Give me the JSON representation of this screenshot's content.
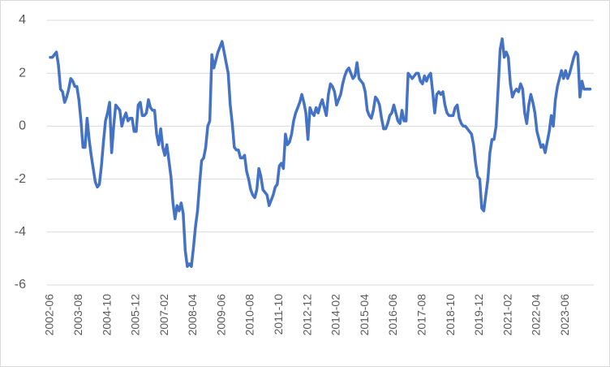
{
  "chart_data": {
    "type": "line",
    "color": "#4472c4",
    "grid": true,
    "ylim": [
      -6,
      4
    ],
    "yticks": [
      -6,
      -4,
      -2,
      0,
      2,
      4
    ],
    "categories": [
      "2002-06",
      null,
      null,
      null,
      null,
      null,
      null,
      null,
      null,
      null,
      null,
      null,
      null,
      null,
      "2003-08",
      null,
      null,
      null,
      null,
      null,
      null,
      null,
      null,
      null,
      null,
      null,
      null,
      null,
      "2004-10",
      null,
      null,
      null,
      null,
      null,
      null,
      null,
      null,
      null,
      null,
      null,
      null,
      null,
      "2005-12",
      null,
      null,
      null,
      null,
      null,
      null,
      null,
      null,
      null,
      null,
      null,
      null,
      null,
      "2007-02",
      null,
      null,
      null,
      null,
      null,
      null,
      null,
      null,
      null,
      null,
      null,
      null,
      null,
      "2008-04",
      null,
      null,
      null,
      null,
      null,
      null,
      null,
      null,
      null,
      null,
      null,
      null,
      null,
      "2009-06",
      null,
      null,
      null,
      null,
      null,
      null,
      null,
      null,
      null,
      null,
      null,
      null,
      null,
      "2010-08",
      null,
      null,
      null,
      null,
      null,
      null,
      null,
      null,
      null,
      null,
      null,
      null,
      null,
      "2011-10",
      null,
      null,
      null,
      null,
      null,
      null,
      null,
      null,
      null,
      null,
      null,
      null,
      null,
      "2012-12",
      null,
      null,
      null,
      null,
      null,
      null,
      null,
      null,
      null,
      null,
      null,
      null,
      null,
      "2014-02",
      null,
      null,
      null,
      null,
      null,
      null,
      null,
      null,
      null,
      null,
      null,
      null,
      null,
      "2015-04",
      null,
      null,
      null,
      null,
      null,
      null,
      null,
      null,
      null,
      null,
      null,
      null,
      null,
      "2016-06",
      null,
      null,
      null,
      null,
      null,
      null,
      null,
      null,
      null,
      null,
      null,
      null,
      null,
      "2017-08",
      null,
      null,
      null,
      null,
      null,
      null,
      null,
      null,
      null,
      null,
      null,
      null,
      null,
      "2018-10",
      null,
      null,
      null,
      null,
      null,
      null,
      null,
      null,
      null,
      null,
      null,
      null,
      null,
      "2019-12",
      null,
      null,
      null,
      null,
      null,
      null,
      null,
      null,
      null,
      null,
      null,
      null,
      null,
      "2021-02",
      null,
      null,
      null,
      null,
      null,
      null,
      null,
      null,
      null,
      null,
      null,
      null,
      null,
      "2022-04",
      null,
      null,
      null,
      null,
      null,
      null,
      null,
      null,
      null,
      null,
      null,
      null,
      null,
      "2023-06",
      null,
      null,
      null,
      null,
      null,
      null,
      null,
      null,
      null,
      null,
      null,
      null
    ],
    "values": [
      2.6,
      2.6,
      2.7,
      2.8,
      2.3,
      1.4,
      1.3,
      0.9,
      1.1,
      1.4,
      1.8,
      1.7,
      1.5,
      1.5,
      1.0,
      0.2,
      -0.8,
      -0.8,
      0.3,
      -0.5,
      -1.1,
      -1.6,
      -2.1,
      -2.3,
      -2.2,
      -1.5,
      -0.6,
      0.2,
      0.5,
      0.9,
      -1.0,
      0.0,
      0.8,
      0.7,
      0.6,
      0.0,
      0.3,
      0.5,
      0.2,
      0.3,
      0.3,
      -0.2,
      -0.2,
      0.8,
      0.9,
      0.4,
      0.4,
      0.5,
      1.0,
      0.7,
      0.6,
      0.6,
      -0.3,
      -0.7,
      -0.1,
      -0.8,
      -1.1,
      -0.7,
      -1.3,
      -1.9,
      -2.9,
      -3.5,
      -3.0,
      -3.2,
      -2.9,
      -3.3,
      -4.7,
      -5.3,
      -5.2,
      -5.3,
      -4.6,
      -3.8,
      -3.2,
      -2.2,
      -1.3,
      -1.2,
      -0.8,
      0.0,
      0.2,
      2.7,
      2.2,
      2.5,
      2.8,
      3.0,
      3.2,
      2.8,
      2.4,
      2.0,
      0.8,
      0.1,
      -0.8,
      -0.9,
      -0.9,
      -1.2,
      -1.2,
      -1.1,
      -1.7,
      -2.0,
      -2.4,
      -2.6,
      -2.7,
      -2.4,
      -1.6,
      -1.9,
      -2.4,
      -2.5,
      -2.6,
      -3.0,
      -2.8,
      -2.6,
      -2.3,
      -2.2,
      -1.5,
      -1.4,
      -1.6,
      -0.3,
      -0.7,
      -0.6,
      -0.3,
      0.2,
      0.5,
      0.7,
      0.9,
      1.2,
      0.9,
      0.5,
      -0.5,
      0.7,
      0.5,
      0.4,
      0.7,
      0.5,
      0.8,
      1.0,
      0.7,
      0.4,
      1.2,
      1.6,
      1.5,
      1.3,
      0.8,
      1.0,
      1.2,
      1.6,
      1.9,
      2.1,
      2.2,
      2.0,
      1.8,
      1.9,
      2.4,
      1.8,
      1.7,
      1.6,
      1.3,
      0.6,
      0.4,
      0.3,
      0.6,
      1.1,
      1.0,
      0.8,
      0.3,
      -0.1,
      -0.1,
      0.1,
      0.4,
      0.5,
      0.8,
      0.5,
      0.2,
      0.1,
      0.6,
      0.2,
      0.2,
      2.0,
      1.9,
      1.8,
      1.9,
      2.0,
      2.0,
      1.7,
      1.6,
      1.9,
      1.7,
      1.9,
      2.0,
      1.3,
      0.5,
      1.2,
      1.3,
      1.2,
      1.3,
      0.8,
      0.5,
      0.4,
      0.4,
      0.4,
      0.7,
      0.8,
      0.3,
      0.1,
      0.0,
      0.0,
      -0.1,
      -0.2,
      -0.3,
      -0.7,
      -1.4,
      -1.9,
      -2.0,
      -3.1,
      -3.2,
      -2.6,
      -2.0,
      -1.0,
      -0.5,
      -0.5,
      0.0,
      1.4,
      2.9,
      3.3,
      2.6,
      2.8,
      2.6,
      1.6,
      1.1,
      1.3,
      1.4,
      1.3,
      1.6,
      1.4,
      0.5,
      0.1,
      0.8,
      1.2,
      0.9,
      0.5,
      -0.2,
      -0.5,
      -0.8,
      -0.7,
      -1.0,
      -0.6,
      -0.2,
      0.4,
      0.0,
      1.0,
      1.5,
      1.8,
      2.1,
      1.8,
      2.1,
      1.8,
      2.0,
      2.3,
      2.6,
      2.8,
      2.7,
      1.1,
      1.7,
      1.4,
      1.4,
      1.4,
      1.4
    ]
  }
}
